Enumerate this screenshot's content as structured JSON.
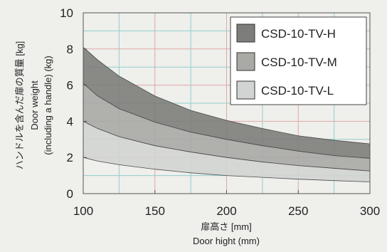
{
  "chart_data": {
    "type": "area",
    "title": "",
    "xlabel": [
      "扉高さ [mm]",
      "Door hight (mm)"
    ],
    "ylabel": [
      "ハンドルを含んだ扉の質量 [kg]",
      "Door weight",
      "(including a handle) (kg)"
    ],
    "xlim": [
      100,
      300
    ],
    "ylim": [
      0,
      10
    ],
    "x_ticks": [
      100,
      150,
      200,
      250,
      300
    ],
    "y_ticks": [
      0,
      2,
      4,
      6,
      8,
      10
    ],
    "grid": true,
    "legend_position": "top-right",
    "x": [
      100,
      110,
      125,
      150,
      175,
      200,
      225,
      250,
      275,
      300
    ],
    "series": [
      {
        "name": "CSD-10-TV-H",
        "color": "#7d7d7b",
        "lower": [
          6.1,
          5.4,
          4.7,
          3.95,
          3.4,
          3.0,
          2.65,
          2.35,
          2.1,
          1.95
        ],
        "upper": [
          8.1,
          7.4,
          6.5,
          5.4,
          4.6,
          4.05,
          3.6,
          3.2,
          2.95,
          2.75
        ]
      },
      {
        "name": "CSD-10-TV-M",
        "color": "#a9a9a6",
        "lower": [
          4.0,
          3.6,
          3.15,
          2.65,
          2.3,
          2.0,
          1.75,
          1.55,
          1.4,
          1.25
        ],
        "upper": [
          6.1,
          5.4,
          4.7,
          3.95,
          3.4,
          3.0,
          2.65,
          2.35,
          2.1,
          1.95
        ]
      },
      {
        "name": "CSD-10-TV-L",
        "color": "#d2d4d3",
        "lower": [
          2.0,
          1.8,
          1.6,
          1.35,
          1.15,
          1.0,
          0.9,
          0.8,
          0.72,
          0.65
        ],
        "upper": [
          4.0,
          3.6,
          3.15,
          2.65,
          2.3,
          2.0,
          1.75,
          1.55,
          1.4,
          1.25
        ]
      }
    ]
  }
}
